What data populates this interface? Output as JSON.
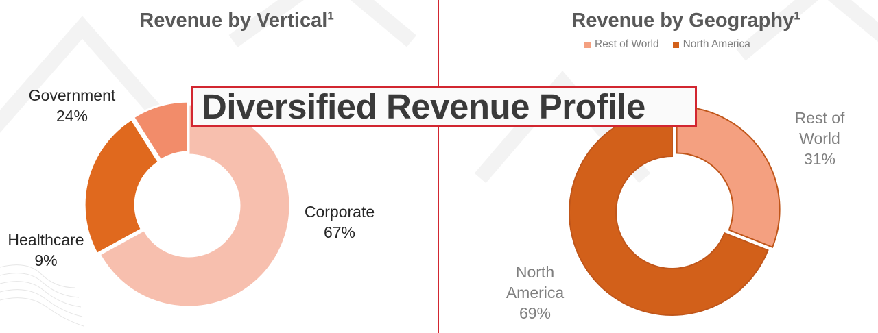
{
  "banner": {
    "title": "Diversified Revenue Profile"
  },
  "colors": {
    "accent_red": "#d22630",
    "corporate": "#f7bfae",
    "government": "#e0691e",
    "healthcare": "#f28c6a",
    "rest_of_world": "#f4a080",
    "north_america": "#d2601a"
  },
  "chart_data": [
    {
      "type": "pie",
      "title": "Revenue by Vertical",
      "title_footnote": "1",
      "donut": true,
      "categories": [
        "Corporate",
        "Government",
        "Healthcare"
      ],
      "values": [
        67,
        24,
        9
      ],
      "value_labels": [
        "67%",
        "24%",
        "9%"
      ],
      "colors": [
        "#f7bfae",
        "#e0691e",
        "#f28c6a"
      ],
      "legend": null
    },
    {
      "type": "pie",
      "title": "Revenue by Geography",
      "title_footnote": "1",
      "donut": true,
      "categories": [
        "Rest of World",
        "North America"
      ],
      "label_lines": [
        [
          "Rest of",
          "World"
        ],
        [
          "North",
          "America"
        ]
      ],
      "values": [
        31,
        69
      ],
      "value_labels": [
        "31%",
        "69%"
      ],
      "colors": [
        "#f4a080",
        "#d2601a"
      ],
      "legend": {
        "position": "top",
        "entries": [
          "Rest of World",
          "North America"
        ]
      }
    }
  ]
}
